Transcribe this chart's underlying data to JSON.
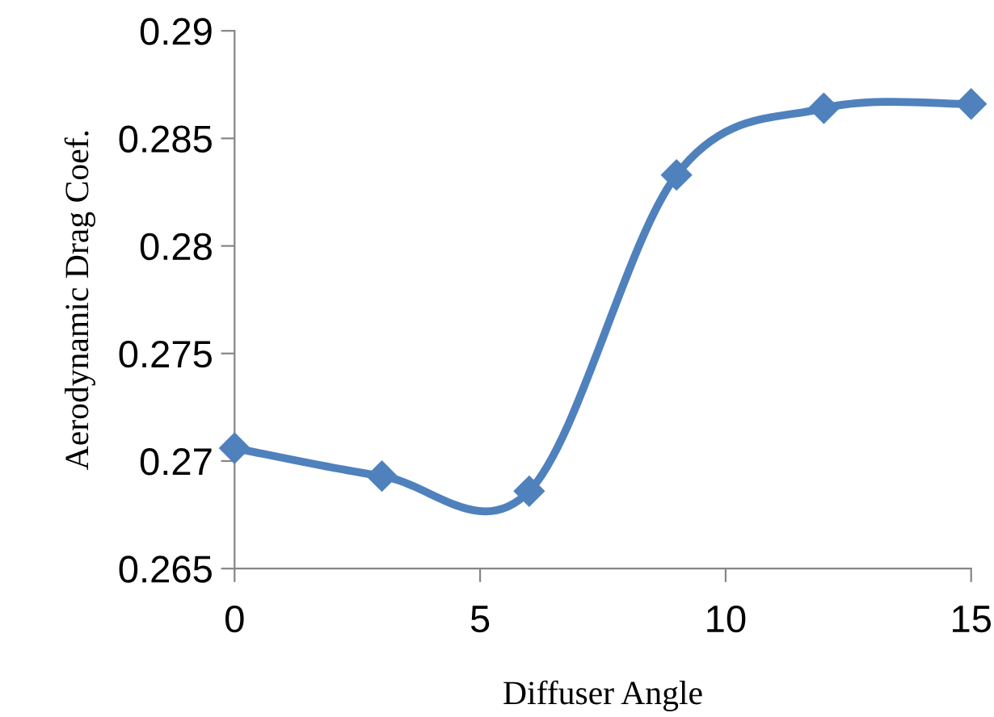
{
  "chart_data": {
    "type": "line",
    "xlabel": "Diffuser Angle",
    "ylabel": "Aerodynamic Drag Coef.",
    "x": [
      0,
      3,
      6,
      9,
      12,
      15
    ],
    "series": [
      {
        "color": "#4f81bd",
        "values": [
          0.2706,
          0.2693,
          0.2686,
          0.2833,
          0.2864,
          0.2866
        ]
      }
    ],
    "xlim": [
      0,
      15
    ],
    "xticks": [
      0,
      5,
      10,
      15
    ],
    "ylim": [
      0.265,
      0.29
    ],
    "yticks": [
      0.265,
      0.27,
      0.275,
      0.28,
      0.285,
      0.29
    ],
    "grid": false,
    "legend": false,
    "marker": "diamond",
    "line_style": "solid"
  }
}
